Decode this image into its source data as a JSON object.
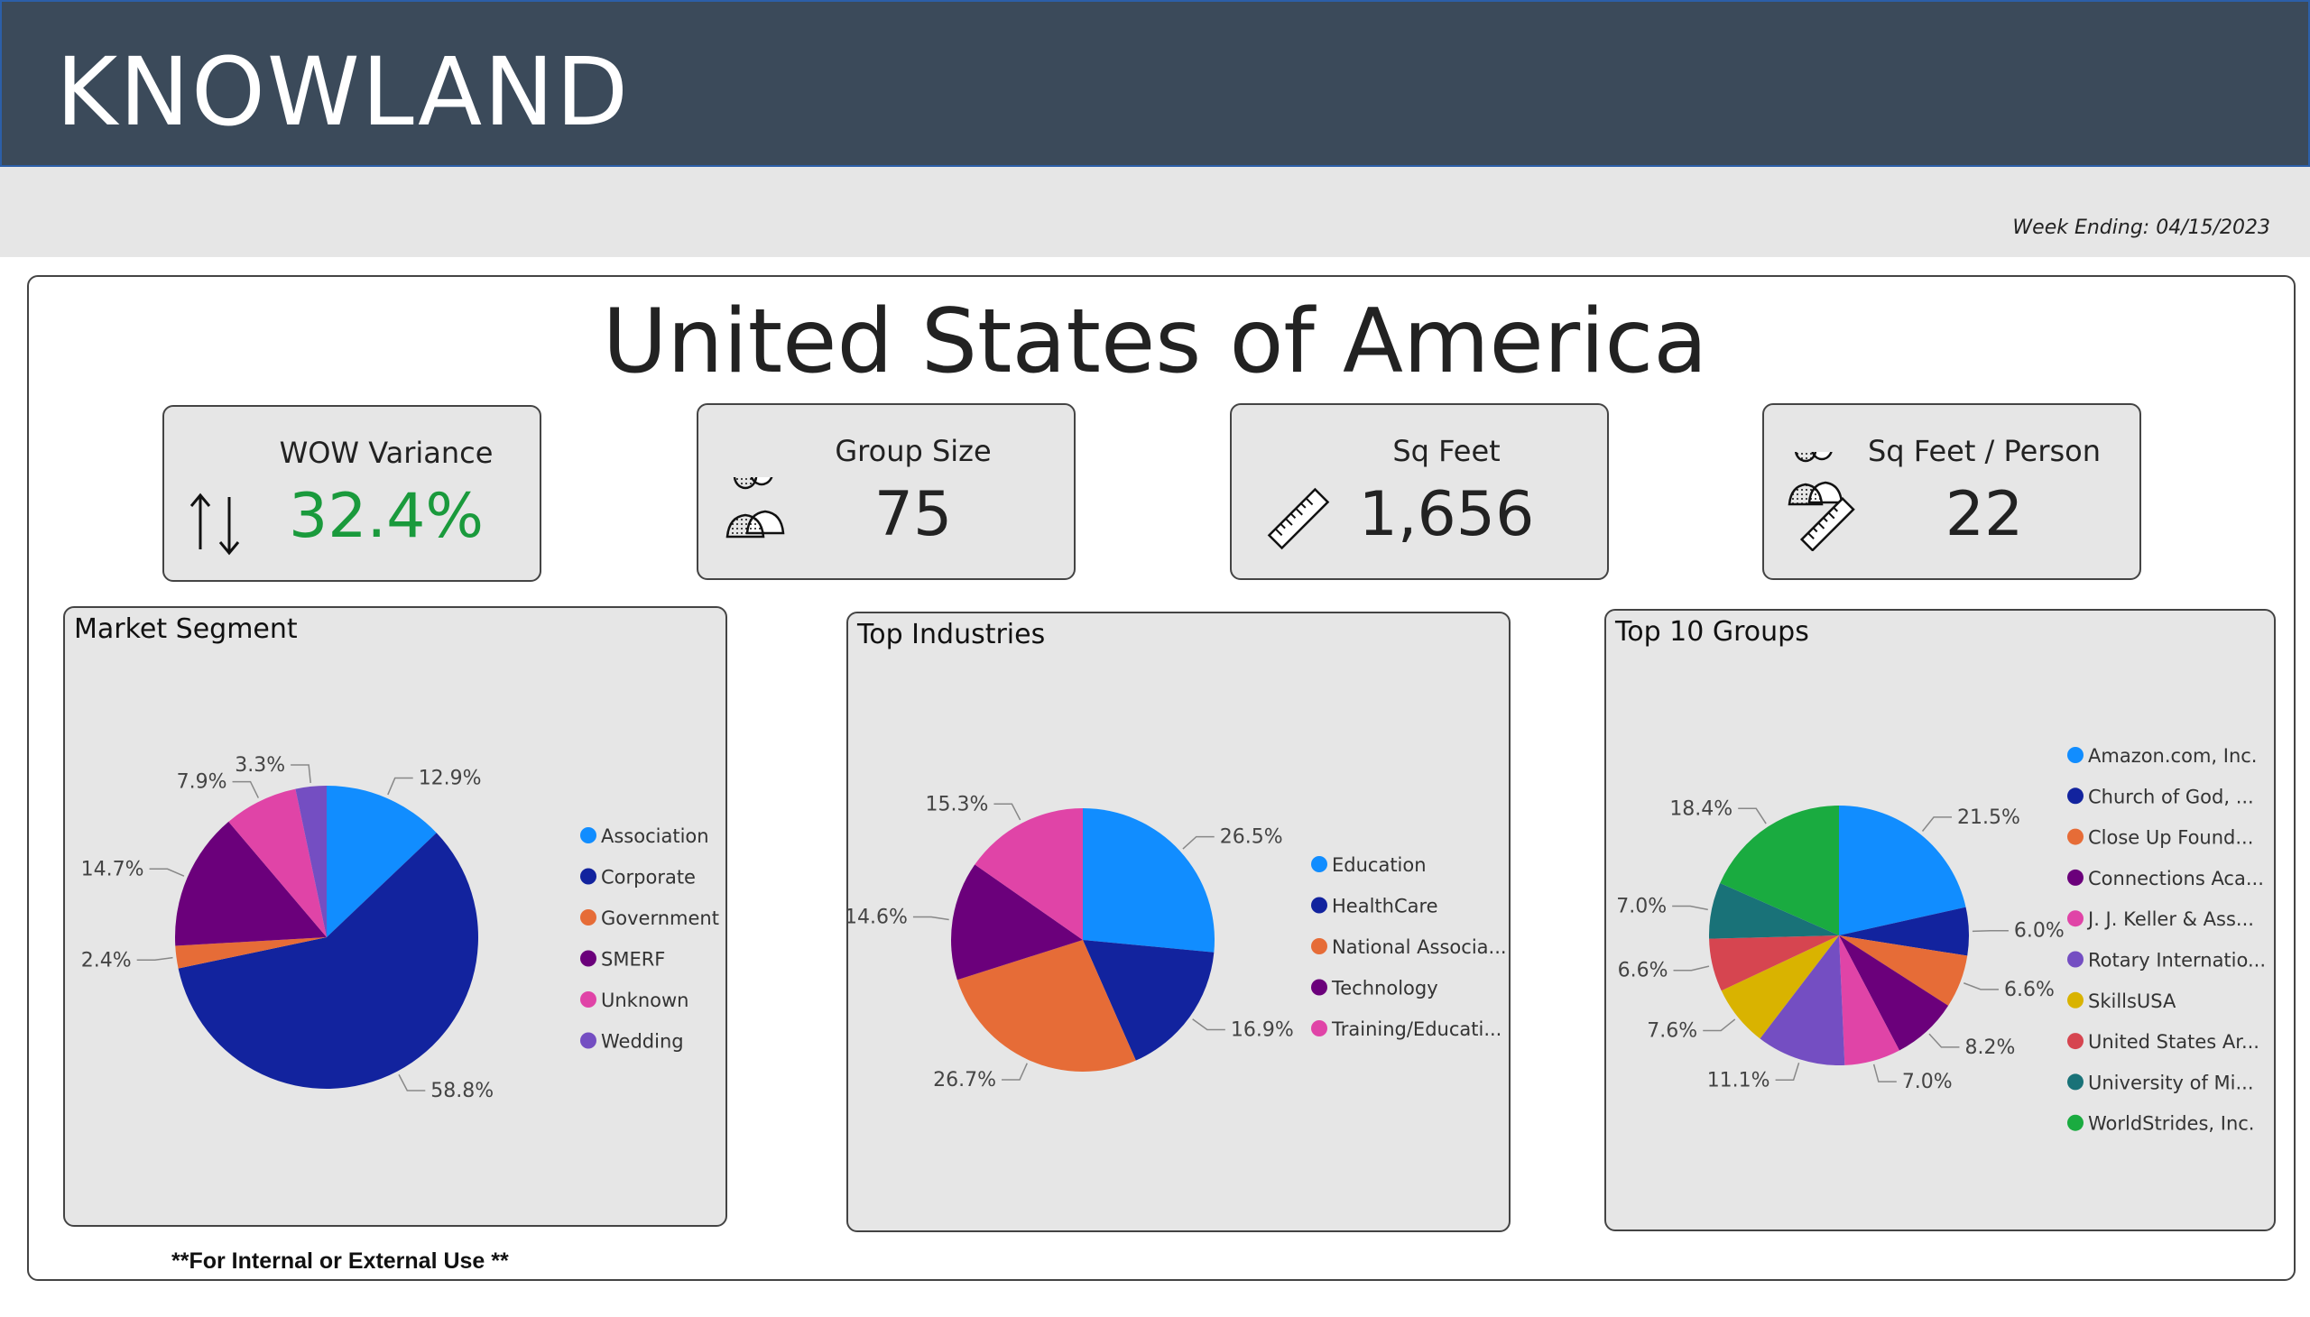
{
  "header": {
    "brand": "KNOWLAND",
    "week_ending": "Week Ending: 04/15/2023"
  },
  "country": "United States of America",
  "kpis": {
    "wow": {
      "label": "WOW Variance",
      "value": "32.4%",
      "icon": "up-down-arrows-icon"
    },
    "group_size": {
      "label": "Group Size",
      "value": "75",
      "icon": "people-icon"
    },
    "sq_feet": {
      "label": "Sq Feet",
      "value": "1,656",
      "icon": "ruler-icon"
    },
    "sq_feet_person": {
      "label": "Sq Feet / Person",
      "value": "22",
      "icon": "people-ruler-icon"
    }
  },
  "footer": "**For Internal or External Use **",
  "colors": {
    "header_bg": "#3b4a5a",
    "positive": "#1a9a3c",
    "panel_bg": "#e6e6e6",
    "palette": [
      "#118dff",
      "#12239e",
      "#e66c37",
      "#6b007b",
      "#e044a7",
      "#744ec2",
      "#d9b300",
      "#d64550",
      "#197278",
      "#1aab40"
    ]
  },
  "chart_data": [
    {
      "id": "market",
      "type": "pie",
      "title": "Market Segment",
      "categories": [
        "Association",
        "Corporate",
        "Government",
        "SMERF",
        "Unknown",
        "Wedding"
      ],
      "values": [
        12.9,
        58.8,
        2.4,
        14.7,
        7.9,
        3.3
      ],
      "labels": [
        "12.9%",
        "58.8%",
        "2.4%",
        "14.7%",
        "7.9%",
        "3.3%"
      ],
      "legend": "right"
    },
    {
      "id": "industries",
      "type": "pie",
      "title": "Top Industries",
      "categories": [
        "Education",
        "HealthCare",
        "National Associa...",
        "Technology",
        "Training/Educati..."
      ],
      "values": [
        26.5,
        16.9,
        26.7,
        14.6,
        15.3
      ],
      "labels": [
        "26.5%",
        "16.9%",
        "26.7%",
        "14.6%",
        "15.3%"
      ],
      "legend": "right"
    },
    {
      "id": "groups",
      "type": "pie",
      "title": "Top 10 Groups",
      "categories": [
        "Amazon.com, Inc.",
        "Church of God, ...",
        "Close Up Found...",
        "Connections Aca...",
        "J. J. Keller & Ass...",
        "Rotary Internatio...",
        "SkillsUSA",
        "United States Ar...",
        "University of Mi...",
        "WorldStrides, Inc."
      ],
      "values": [
        21.5,
        6.0,
        6.6,
        8.2,
        7.0,
        11.1,
        7.6,
        6.6,
        7.0,
        18.4
      ],
      "labels": [
        "21.5%",
        "6.0%",
        "6.6%",
        "8.2%",
        "7.0%",
        "11.1%",
        "7.6%",
        "6.6%",
        "7.0%",
        "18.4%"
      ],
      "legend": "right"
    }
  ]
}
